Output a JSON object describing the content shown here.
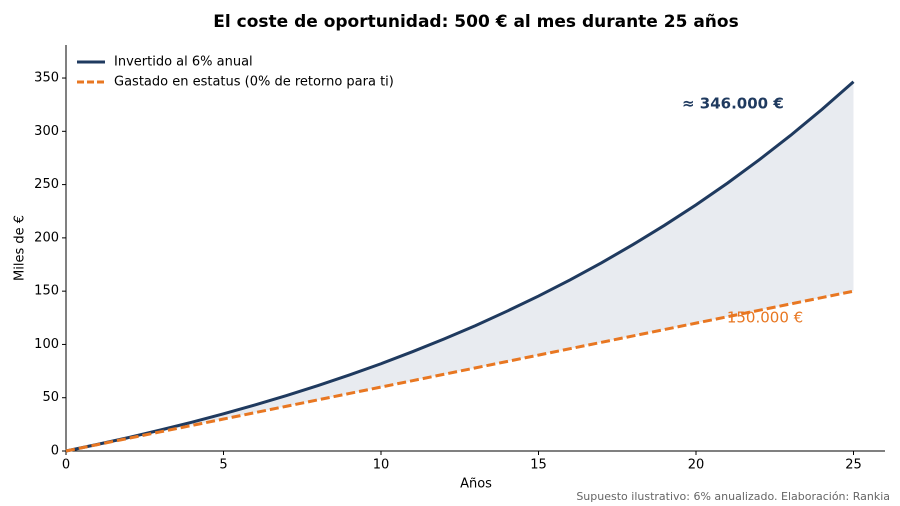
{
  "chart_data": {
    "type": "line",
    "title": "El coste de oportunidad: 500 € al mes durante 25 años",
    "x_label": "Años",
    "y_label": "Miles de €",
    "x": [
      0,
      1,
      2,
      3,
      4,
      5,
      6,
      7,
      8,
      9,
      10,
      11,
      12,
      13,
      14,
      15,
      16,
      17,
      18,
      19,
      20,
      21,
      22,
      23,
      24,
      25
    ],
    "series": [
      {
        "name": "Invertido al 6% anual",
        "color": "#1f3a5f",
        "dashed": false,
        "values": [
          0,
          6.2,
          12.7,
          19.7,
          27.0,
          34.9,
          43.2,
          52.0,
          61.4,
          71.4,
          81.9,
          93.2,
          105.1,
          117.7,
          131.2,
          145.4,
          160.5,
          176.6,
          193.7,
          211.8,
          231.0,
          251.4,
          273.1,
          296.1,
          320.6,
          346.5
        ]
      },
      {
        "name": "Gastado en estatus (0% de retorno para ti)",
        "color": "#e87722",
        "dashed": true,
        "values": [
          0,
          6,
          12,
          18,
          24,
          30,
          36,
          42,
          48,
          54,
          60,
          66,
          72,
          78,
          84,
          90,
          96,
          102,
          108,
          114,
          120,
          126,
          132,
          138,
          144,
          150
        ]
      }
    ],
    "fill_between": true,
    "fill_color": "#e8ebf0",
    "annotations": [
      {
        "text": "≈ 346.000 €",
        "color": "#1f3a5f",
        "bold": true
      },
      {
        "text": "150.000 €",
        "color": "#e87722",
        "bold": false
      }
    ],
    "xlim": [
      0,
      26
    ],
    "xticks": [
      0,
      5,
      10,
      15,
      20,
      25
    ],
    "ylim": [
      0,
      381
    ],
    "yticks": [
      0,
      50,
      100,
      150,
      200,
      250,
      300,
      350
    ],
    "legend": "upper left",
    "footnote": "Supuesto ilustrativo: 6% anualizado. Elaboración: Rankia"
  }
}
